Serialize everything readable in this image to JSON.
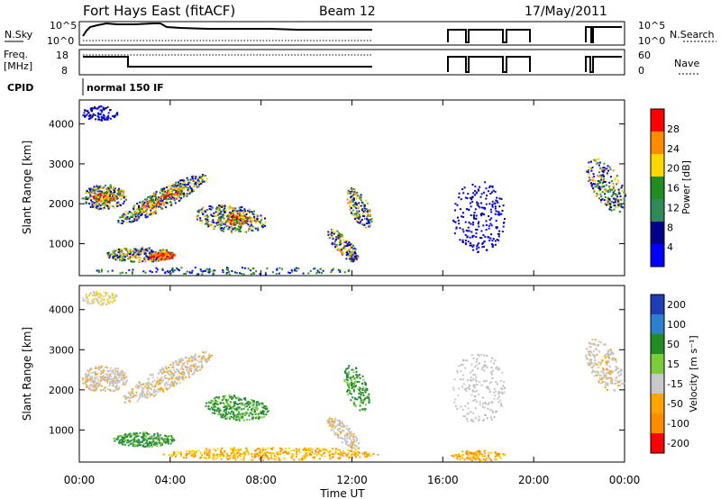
{
  "header": {
    "station": "Fort Hays East (fitACF)",
    "beam": "Beam 12",
    "date": "17/May/2011"
  },
  "panels": {
    "nsky": {
      "left_label": "N.Sky",
      "ticks": [
        "10^5",
        "10^0"
      ],
      "right_label": "N.Search",
      "right_ticks": [
        "10^5",
        "10^0"
      ]
    },
    "freq": {
      "left_label_line1": "Freq.",
      "left_label_line2": "[MHz]",
      "ticks": [
        "18",
        "8"
      ],
      "right_label": "Nave",
      "right_ticks": [
        "60",
        "0"
      ]
    },
    "cpid": {
      "label": "CPID",
      "mode": "normal 150 IF"
    }
  },
  "chart_data": [
    {
      "type": "heatmap",
      "title": "",
      "xlabel": "Time UT",
      "ylabel": "Slant Range [km]",
      "x_ticks": [
        "00:00",
        "04:00",
        "08:00",
        "12:00",
        "16:00",
        "20:00",
        "00:00"
      ],
      "y_ticks": [
        1000,
        2000,
        3000,
        4000
      ],
      "ylim": [
        200,
        4600
      ],
      "colorbar": {
        "label": "Power [dB]",
        "ticks": [
          "28",
          "24",
          "20",
          "16",
          "12",
          "8",
          "4"
        ],
        "colors": [
          "#ff0000",
          "#ff8c00",
          "#ffd700",
          "#228b22",
          "#2e8b57",
          "#00008b",
          "#0000ff"
        ]
      }
    },
    {
      "type": "heatmap",
      "title": "",
      "xlabel": "Time UT",
      "ylabel": "Slant Range [km]",
      "x_ticks": [
        "00:00",
        "04:00",
        "08:00",
        "12:00",
        "16:00",
        "20:00",
        "00:00"
      ],
      "y_ticks": [
        1000,
        2000,
        3000,
        4000
      ],
      "ylim": [
        200,
        4600
      ],
      "colorbar": {
        "label": "Velocity [m s⁻¹]",
        "ticks": [
          "200",
          "100",
          "50",
          "15",
          "-15",
          "-50",
          "-100",
          "-200"
        ],
        "colors": [
          "#1e3cb4",
          "#2f7fcf",
          "#228b22",
          "#7ccd3b",
          "#c8c8c8",
          "#ffa500",
          "#ff8c00",
          "#ff0000"
        ]
      }
    }
  ]
}
